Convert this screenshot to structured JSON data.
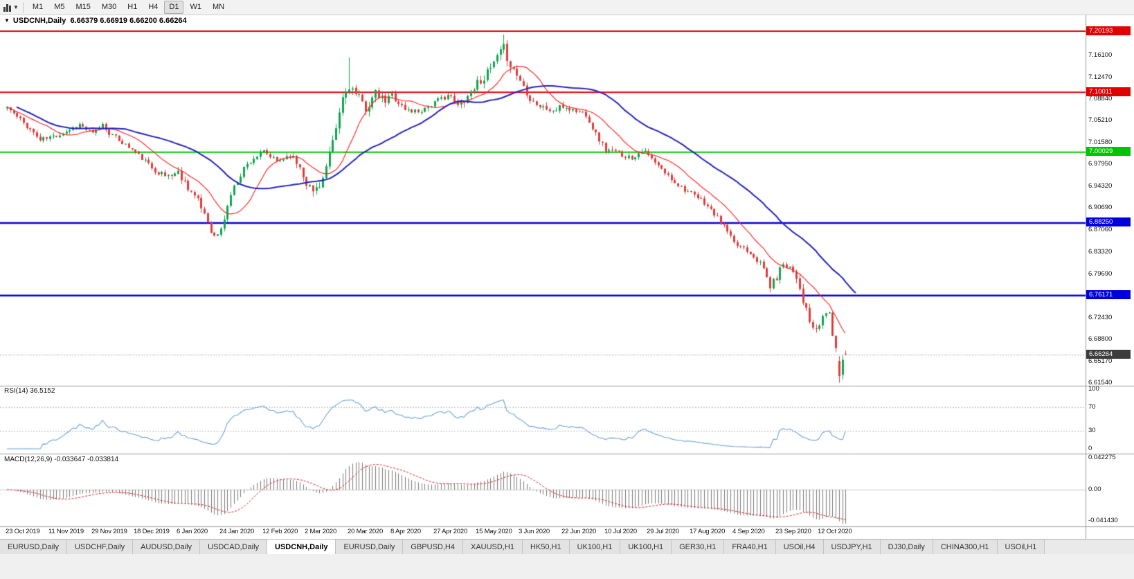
{
  "icons": {
    "collapse": "▼",
    "dropdown": "▼"
  },
  "toolbar": {
    "timeframes": [
      "M1",
      "M5",
      "M15",
      "M30",
      "H1",
      "H4",
      "D1",
      "W1",
      "MN"
    ],
    "active_timeframe": "D1"
  },
  "chart": {
    "title_symbol": "USDCNH,Daily",
    "title_ohlc": "6.66379 6.66919 6.66200 6.66264"
  },
  "price_scale": {
    "labels": [
      "7.16100",
      "7.12470",
      "7.08840",
      "7.05210",
      "7.01580",
      "6.97950",
      "6.94320",
      "6.90690",
      "6.87060",
      "6.83320",
      "6.79690",
      "6.72430",
      "6.68800",
      "6.65170",
      "6.61540"
    ],
    "levels": [
      {
        "value": "7.20193",
        "price": 7.20193,
        "color": "#E00000"
      },
      {
        "value": "7.10011",
        "price": 7.10011,
        "color": "#E00000"
      },
      {
        "value": "7.00029",
        "price": 7.00029,
        "color": "#00C400"
      },
      {
        "value": "6.88250",
        "price": 6.8825,
        "color": "#0000DC"
      },
      {
        "value": "6.76171",
        "price": 6.76171,
        "color": "#0000DC"
      }
    ],
    "current_price": {
      "value": "6.66264",
      "price": 6.66264,
      "bg": "#3C3C3C"
    }
  },
  "rsi": {
    "label": "RSI(14) 36.5152",
    "scale": [
      {
        "text": "100",
        "v": 100
      },
      {
        "text": "70",
        "v": 70
      },
      {
        "text": "30",
        "v": 30
      },
      {
        "text": "0",
        "v": 0
      }
    ],
    "dashed_levels": [
      70,
      30
    ],
    "line_color": "#69A3D9"
  },
  "macd": {
    "label": "MACD(12,26,9) -0.033647 -0.033814",
    "scale_max": {
      "text": "0.042275",
      "v": 0.042275
    },
    "scale_zero": {
      "text": "0.00",
      "v": 0
    },
    "scale_min": {
      "text": "-0.041430",
      "v": -0.04143
    },
    "hist_color": "#7A7A7A",
    "signal_color": "#E02020"
  },
  "date_axis": [
    {
      "text": "23 Oct 2019",
      "day": 0
    },
    {
      "text": "11 Nov 2019",
      "day": 13
    },
    {
      "text": "29 Nov 2019",
      "day": 26
    },
    {
      "text": "18 Dec 2019",
      "day": 39
    },
    {
      "text": "6 Jan 2020",
      "day": 52
    },
    {
      "text": "24 Jan 2020",
      "day": 65
    },
    {
      "text": "12 Feb 2020",
      "day": 78
    },
    {
      "text": "2 Mar 2020",
      "day": 91
    },
    {
      "text": "20 Mar 2020",
      "day": 104
    },
    {
      "text": "8 Apr 2020",
      "day": 117
    },
    {
      "text": "27 Apr 2020",
      "day": 130
    },
    {
      "text": "15 May 2020",
      "day": 143
    },
    {
      "text": "3 Jun 2020",
      "day": 156
    },
    {
      "text": "22 Jun 2020",
      "day": 169
    },
    {
      "text": "10 Jul 2020",
      "day": 182
    },
    {
      "text": "29 Jul 2020",
      "day": 195
    },
    {
      "text": "17 Aug 2020",
      "day": 208
    },
    {
      "text": "4 Sep 2020",
      "day": 221
    },
    {
      "text": "23 Sep 2020",
      "day": 234
    },
    {
      "text": "12 Oct 2020",
      "day": 247
    }
  ],
  "tabs": [
    {
      "label": "EURUSD,Daily",
      "active": false
    },
    {
      "label": "USDCHF,Daily",
      "active": false
    },
    {
      "label": "AUDUSD,Daily",
      "active": false
    },
    {
      "label": "USDCAD,Daily",
      "active": false
    },
    {
      "label": "USDCNH,Daily",
      "active": true
    },
    {
      "label": "EURUSD,Daily",
      "active": false
    },
    {
      "label": "GBPUSD,H4",
      "active": false
    },
    {
      "label": "XAUUSD,H1",
      "active": false
    },
    {
      "label": "HK50,H1",
      "active": false
    },
    {
      "label": "UK100,H1",
      "active": false
    },
    {
      "label": "UK100,H1",
      "active": false
    },
    {
      "label": "GER30,H1",
      "active": false
    },
    {
      "label": "FRA40,H1",
      "active": false
    },
    {
      "label": "USOil,H4",
      "active": false
    },
    {
      "label": "USDJPY,H1",
      "active": false
    },
    {
      "label": "DJ30,Daily",
      "active": false
    },
    {
      "label": "CHINA300,H1",
      "active": false
    },
    {
      "label": "USOil,H1",
      "active": false
    }
  ],
  "chart_data": {
    "type": "candlestick",
    "symbol": "USDCNH",
    "timeframe": "Daily",
    "bars": 256,
    "ylim": [
      6.6108,
      7.2095
    ],
    "ohlc_last": {
      "open": 6.66379,
      "high": 6.66919,
      "low": 6.662,
      "close": 6.66264
    },
    "levels": [
      7.20193,
      7.10011,
      7.00029,
      6.8825,
      6.76171
    ],
    "rsi_last": 36.5152,
    "macd_last": [
      -0.033647,
      -0.033814
    ],
    "up_color": "#0FA64E",
    "down_color": "#E23B3B",
    "ma_fast": {
      "period": 13,
      "color": "#FF2A2A"
    },
    "ma_slow": {
      "period": 34,
      "color": "#2323BE",
      "shift": 3
    },
    "price_anchors": [
      [
        0,
        7.075
      ],
      [
        3,
        7.058
      ],
      [
        6,
        7.044
      ],
      [
        10,
        7.02
      ],
      [
        14,
        7.026
      ],
      [
        18,
        7.035
      ],
      [
        22,
        7.046
      ],
      [
        26,
        7.03
      ],
      [
        29,
        7.046
      ],
      [
        31,
        7.032
      ],
      [
        34,
        7.02
      ],
      [
        39,
        7.0
      ],
      [
        44,
        6.974
      ],
      [
        48,
        6.96
      ],
      [
        52,
        6.966
      ],
      [
        56,
        6.935
      ],
      [
        60,
        6.898
      ],
      [
        63,
        6.858
      ],
      [
        65,
        6.87
      ],
      [
        68,
        6.93
      ],
      [
        72,
        6.974
      ],
      [
        75,
        6.99
      ],
      [
        78,
        7.0
      ],
      [
        82,
        6.984
      ],
      [
        86,
        6.996
      ],
      [
        89,
        6.976
      ],
      [
        91,
        6.95
      ],
      [
        93,
        6.934
      ],
      [
        96,
        6.956
      ],
      [
        99,
        7.012
      ],
      [
        102,
        7.09
      ],
      [
        104,
        7.112
      ],
      [
        106,
        7.094
      ],
      [
        109,
        7.074
      ],
      [
        112,
        7.096
      ],
      [
        115,
        7.084
      ],
      [
        117,
        7.096
      ],
      [
        121,
        7.07
      ],
      [
        125,
        7.068
      ],
      [
        128,
        7.076
      ],
      [
        130,
        7.082
      ],
      [
        134,
        7.096
      ],
      [
        137,
        7.076
      ],
      [
        140,
        7.094
      ],
      [
        143,
        7.116
      ],
      [
        146,
        7.13
      ],
      [
        149,
        7.156
      ],
      [
        151,
        7.172
      ],
      [
        153,
        7.146
      ],
      [
        156,
        7.12
      ],
      [
        159,
        7.09
      ],
      [
        162,
        7.076
      ],
      [
        166,
        7.068
      ],
      [
        169,
        7.076
      ],
      [
        172,
        7.07
      ],
      [
        176,
        7.064
      ],
      [
        179,
        7.03
      ],
      [
        182,
        7.004
      ],
      [
        186,
        6.998
      ],
      [
        190,
        6.99
      ],
      [
        193,
        7.004
      ],
      [
        195,
        6.994
      ],
      [
        198,
        6.976
      ],
      [
        201,
        6.96
      ],
      [
        204,
        6.946
      ],
      [
        208,
        6.93
      ],
      [
        212,
        6.916
      ],
      [
        216,
        6.89
      ],
      [
        219,
        6.868
      ],
      [
        221,
        6.846
      ],
      [
        224,
        6.842
      ],
      [
        227,
        6.828
      ],
      [
        230,
        6.806
      ],
      [
        232,
        6.776
      ],
      [
        234,
        6.792
      ],
      [
        236,
        6.816
      ],
      [
        238,
        6.81
      ],
      [
        240,
        6.794
      ],
      [
        242,
        6.754
      ],
      [
        244,
        6.716
      ],
      [
        246,
        6.7
      ],
      [
        248,
        6.726
      ],
      [
        250,
        6.736
      ],
      [
        251,
        6.694
      ],
      [
        252,
        6.668
      ],
      [
        253,
        6.645
      ],
      [
        254,
        6.63
      ],
      [
        255,
        6.66264
      ]
    ],
    "volatility_anchors": [
      [
        0,
        0.0065
      ],
      [
        40,
        0.005
      ],
      [
        58,
        0.0095
      ],
      [
        66,
        0.0075
      ],
      [
        80,
        0.005
      ],
      [
        95,
        0.011
      ],
      [
        105,
        0.013
      ],
      [
        118,
        0.008
      ],
      [
        130,
        0.006
      ],
      [
        140,
        0.009
      ],
      [
        150,
        0.0115
      ],
      [
        160,
        0.007
      ],
      [
        180,
        0.0065
      ],
      [
        200,
        0.005
      ],
      [
        214,
        0.0055
      ],
      [
        228,
        0.006
      ],
      [
        240,
        0.0095
      ],
      [
        255,
        0.008
      ]
    ]
  }
}
